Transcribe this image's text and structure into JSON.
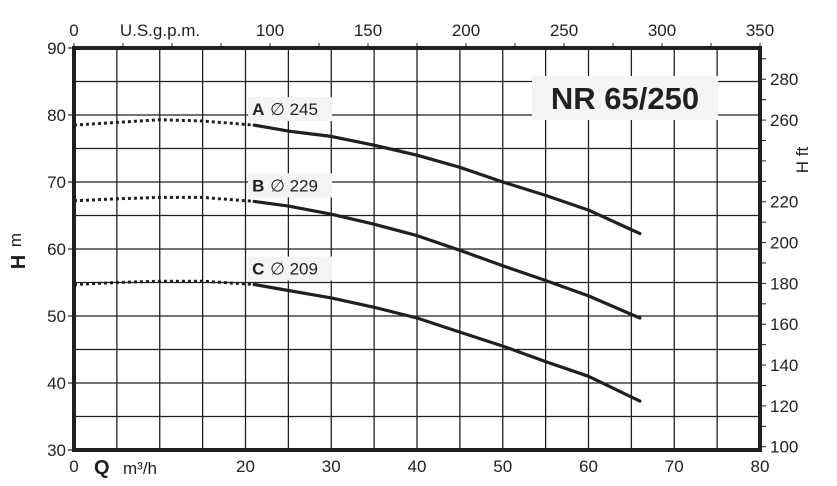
{
  "chart_data": {
    "type": "line",
    "title": "NR 65/250",
    "xlabel": "Q  m³/h",
    "xlabel_bold": "Q",
    "xlabel_unit": "m³/h",
    "x2label": "U.S.g.p.m.",
    "ylabel": "H m",
    "ylabel_bold": "H",
    "ylabel_unit": "m",
    "y2label": "H ft",
    "xlim": [
      0,
      80
    ],
    "ylim": [
      30,
      90
    ],
    "x2lim": [
      0,
      350
    ],
    "y2lim": [
      98.4,
      295.3
    ],
    "x_ticks": [
      0,
      20,
      30,
      40,
      50,
      60,
      70,
      80
    ],
    "x_tick_labels": [
      "0",
      "20",
      "30",
      "40",
      "50",
      "60",
      "70",
      "80"
    ],
    "x_grid_step": 5,
    "y_ticks": [
      30,
      40,
      50,
      60,
      70,
      80,
      90
    ],
    "y_tick_labels": [
      "30",
      "40",
      "50",
      "60",
      "70",
      "80",
      "90"
    ],
    "y_grid_step": 5,
    "x2_ticks": [
      0,
      100,
      150,
      200,
      250,
      300,
      350
    ],
    "x2_tick_labels": [
      "0",
      "100",
      "150",
      "200",
      "250",
      "300",
      "350"
    ],
    "x2_minor_step": 25,
    "y2_ticks": [
      100,
      120,
      140,
      160,
      180,
      200,
      220,
      260,
      280
    ],
    "y2_tick_labels": [
      "100",
      "120",
      "140",
      "160",
      "180",
      "200",
      "220",
      "260",
      "280"
    ],
    "y2_minor_step": 10,
    "grid": true,
    "series": [
      {
        "name": "A",
        "diameter": "245",
        "label": "A ∅ 245",
        "dotted": {
          "x": [
            0,
            5,
            10,
            15,
            21
          ],
          "y": [
            78.5,
            78.9,
            79.3,
            79.1,
            78.5
          ]
        },
        "solid": {
          "x": [
            21,
            25,
            30,
            35,
            40,
            45,
            50,
            55,
            60,
            66
          ],
          "y": [
            78.5,
            77.6,
            76.8,
            75.5,
            74.0,
            72.2,
            70.0,
            68.0,
            65.8,
            62.3
          ]
        }
      },
      {
        "name": "B",
        "diameter": "229",
        "label": "B ∅ 229",
        "dotted": {
          "x": [
            0,
            5,
            10,
            15,
            21
          ],
          "y": [
            67.2,
            67.5,
            67.7,
            67.7,
            67.1
          ]
        },
        "solid": {
          "x": [
            21,
            25,
            30,
            35,
            40,
            45,
            50,
            55,
            60,
            66
          ],
          "y": [
            67.1,
            66.4,
            65.2,
            63.7,
            62.0,
            59.8,
            57.5,
            55.3,
            53.0,
            49.7
          ]
        }
      },
      {
        "name": "C",
        "diameter": "209",
        "label": "C ∅ 209",
        "dotted": {
          "x": [
            0,
            5,
            10,
            15,
            21
          ],
          "y": [
            54.7,
            55.0,
            55.2,
            55.2,
            54.7
          ]
        },
        "solid": {
          "x": [
            21,
            25,
            30,
            35,
            40,
            45,
            50,
            55,
            60,
            66
          ],
          "y": [
            54.7,
            53.8,
            52.7,
            51.3,
            49.7,
            47.6,
            45.5,
            43.2,
            41.0,
            37.3
          ]
        }
      }
    ],
    "colors": {
      "line": "#231f20",
      "grid": "#231f20",
      "label_bg": "#f4f4f4",
      "background": "#ffffff"
    }
  }
}
